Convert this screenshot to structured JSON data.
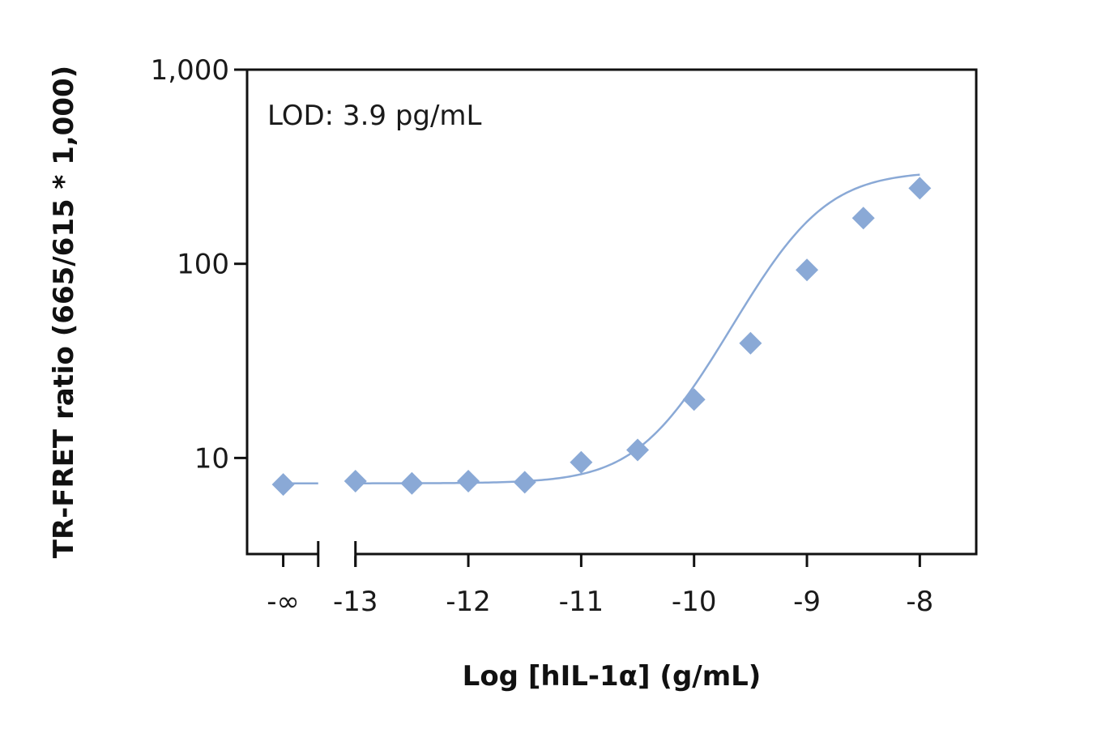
{
  "chart_data": {
    "type": "scatter",
    "xlabel": "Log [hIL-1α] (g/mL)",
    "ylabel": "TR-FRET ratio (665/615 * 1,000)",
    "annotation": "LOD: 3.9 pg/mL",
    "y_scale": "log",
    "ylim": [
      3.2,
      1000
    ],
    "xlim": [
      -13.96,
      -7.5
    ],
    "x_ticks": [
      {
        "label": "-∞",
        "value": -13.64
      },
      {
        "label": "-13",
        "value": -13
      },
      {
        "label": "-12",
        "value": -12
      },
      {
        "label": "-11",
        "value": -11
      },
      {
        "label": "-10",
        "value": -10
      },
      {
        "label": "-9",
        "value": -9
      },
      {
        "label": "-8",
        "value": -8
      }
    ],
    "y_ticks": [
      {
        "label": "10",
        "value": 10
      },
      {
        "label": "100",
        "value": 100
      },
      {
        "label": "1,000",
        "value": 1000
      }
    ],
    "axis_break": [
      -13.33,
      -13.0
    ],
    "series": [
      {
        "color": "#8aa9d6",
        "points": [
          {
            "x": -13.64,
            "y": 7.3
          },
          {
            "x": -13.0,
            "y": 7.6
          },
          {
            "x": -12.5,
            "y": 7.4
          },
          {
            "x": -12.0,
            "y": 7.6
          },
          {
            "x": -11.5,
            "y": 7.5
          },
          {
            "x": -11.0,
            "y": 9.5
          },
          {
            "x": -10.5,
            "y": 11.0
          },
          {
            "x": -10.0,
            "y": 20.0
          },
          {
            "x": -9.5,
            "y": 39.0
          },
          {
            "x": -9.0,
            "y": 93.0
          },
          {
            "x": -8.5,
            "y": 172.0
          },
          {
            "x": -8.0,
            "y": 245.0
          }
        ]
      }
    ],
    "fit": {
      "model": "4PL",
      "bottom": 7.4,
      "top": 300,
      "log_ec50": -9.05,
      "hill": 1.3,
      "x_range": [
        -13.0,
        -8.0
      ],
      "baseline_segment": [
        -13.64,
        -13.33
      ]
    },
    "grid": false
  }
}
